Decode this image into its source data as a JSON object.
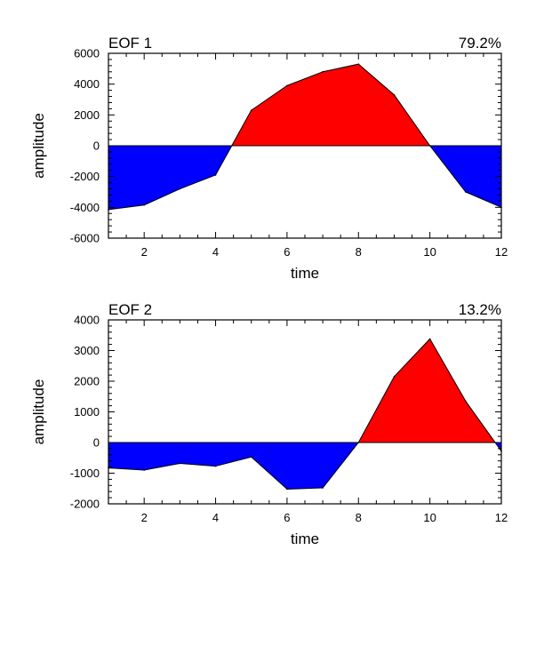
{
  "chart_data": [
    {
      "type": "area",
      "title": "EOF 1",
      "percent_label": "79.2%",
      "xlabel": "time",
      "ylabel": "amplitude",
      "xlim": [
        1,
        12
      ],
      "ylim": [
        -6000,
        6000
      ],
      "x_ticks": [
        2,
        4,
        6,
        8,
        10,
        12
      ],
      "x_tick_labels": [
        "2",
        "4",
        "6",
        "8",
        "10",
        "12"
      ],
      "y_ticks": [
        -6000,
        -4000,
        -2000,
        0,
        2000,
        4000,
        6000
      ],
      "y_tick_labels": [
        "-6000",
        "-4000",
        "-2000",
        "0",
        "2000",
        "4000",
        "6000"
      ],
      "x": [
        1,
        2,
        3,
        4,
        5,
        6,
        7,
        8,
        9,
        10,
        11,
        12
      ],
      "values": [
        -4150,
        -3850,
        -2800,
        -1900,
        2300,
        3900,
        4800,
        5300,
        3300,
        0,
        -3000,
        -4000
      ],
      "positive_color": "#ff0000",
      "negative_color": "#0000ff"
    },
    {
      "type": "area",
      "title": "EOF 2",
      "percent_label": "13.2%",
      "xlabel": "time",
      "ylabel": "amplitude",
      "xlim": [
        1,
        12
      ],
      "ylim": [
        -2000,
        4000
      ],
      "x_ticks": [
        2,
        4,
        6,
        8,
        10,
        12
      ],
      "x_tick_labels": [
        "2",
        "4",
        "6",
        "8",
        "10",
        "12"
      ],
      "y_ticks": [
        -2000,
        -1000,
        0,
        1000,
        2000,
        3000,
        4000
      ],
      "y_tick_labels": [
        "-2000",
        "-1000",
        "0",
        "1000",
        "2000",
        "3000",
        "4000"
      ],
      "x": [
        1,
        2,
        3,
        4,
        5,
        6,
        7,
        8,
        9,
        10,
        11,
        12
      ],
      "values": [
        -830,
        -900,
        -680,
        -770,
        -470,
        -1520,
        -1480,
        0,
        2150,
        3380,
        1350,
        -280
      ],
      "positive_color": "#ff0000",
      "negative_color": "#0000ff"
    }
  ]
}
